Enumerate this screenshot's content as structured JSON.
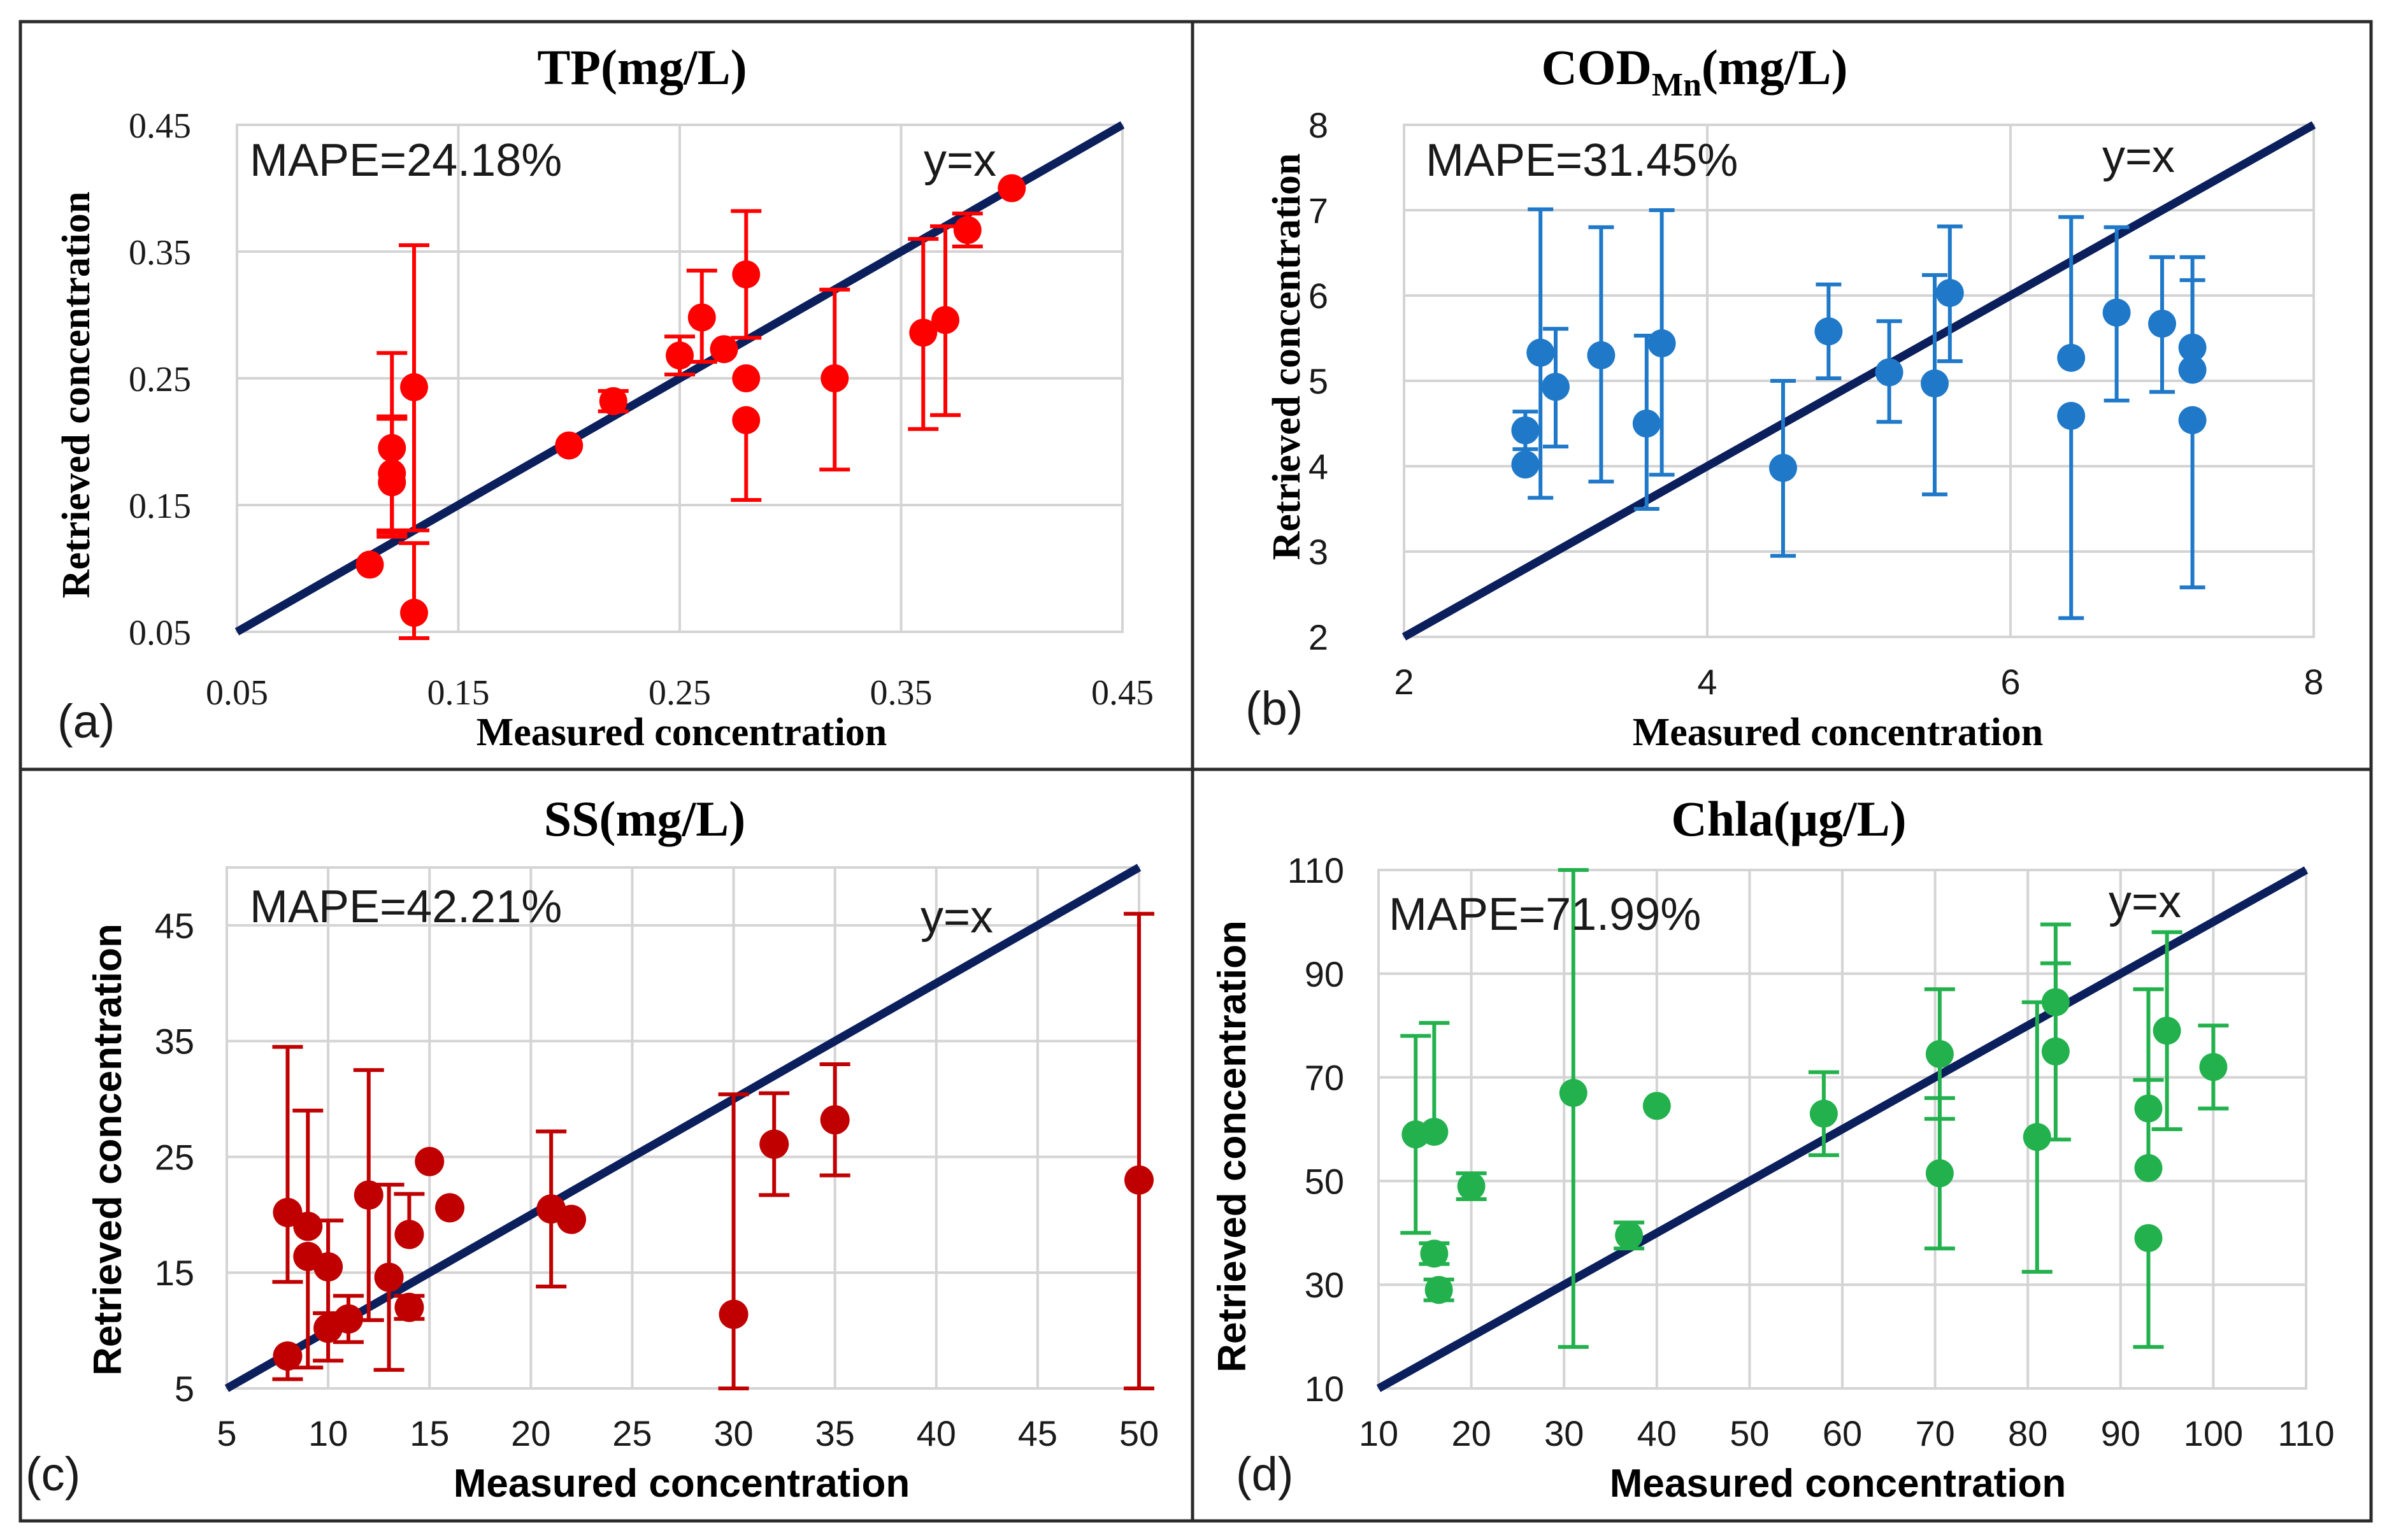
{
  "chart_data": [
    {
      "panel_label": "(a)",
      "type": "scatter",
      "title": "TP(mg/L)",
      "xlabel": "Measured concentration",
      "ylabel": "Retrieved concentration",
      "xlim": [
        0.05,
        0.45
      ],
      "ylim": [
        0.05,
        0.45
      ],
      "xticks": [
        "0.05",
        "0.15",
        "0.25",
        "0.35",
        "0.45"
      ],
      "yticks": [
        "0.05",
        "0.15",
        "0.25",
        "0.35",
        "0.45"
      ],
      "metric": "MAPE=24.18%",
      "ref_line_label": "y=x",
      "color": "#ff0000",
      "points": [
        {
          "x": 0.11,
          "y": 0.103,
          "err_low": 0.0,
          "err_high": 0.0
        },
        {
          "x": 0.12,
          "y": 0.195,
          "err_low": 0.07,
          "err_high": 0.075
        },
        {
          "x": 0.12,
          "y": 0.175,
          "err_low": 0.045,
          "err_high": 0.045
        },
        {
          "x": 0.12,
          "y": 0.168,
          "err_low": 0.04,
          "err_high": 0.05
        },
        {
          "x": 0.13,
          "y": 0.243,
          "err_low": 0.113,
          "err_high": 0.112
        },
        {
          "x": 0.13,
          "y": 0.065,
          "err_low": 0.02,
          "err_high": 0.055
        },
        {
          "x": 0.2,
          "y": 0.197,
          "err_low": 0.0,
          "err_high": 0.0
        },
        {
          "x": 0.22,
          "y": 0.232,
          "err_low": 0.008,
          "err_high": 0.008
        },
        {
          "x": 0.25,
          "y": 0.268,
          "err_low": 0.015,
          "err_high": 0.015
        },
        {
          "x": 0.26,
          "y": 0.298,
          "err_low": 0.035,
          "err_high": 0.037
        },
        {
          "x": 0.27,
          "y": 0.273,
          "err_low": 0.0,
          "err_high": 0.0
        },
        {
          "x": 0.28,
          "y": 0.332,
          "err_low": 0.05,
          "err_high": 0.05
        },
        {
          "x": 0.28,
          "y": 0.25,
          "err_low": 0.0,
          "err_high": 0.0
        },
        {
          "x": 0.28,
          "y": 0.217,
          "err_low": 0.063,
          "err_high": 0.0
        },
        {
          "x": 0.32,
          "y": 0.25,
          "err_low": 0.072,
          "err_high": 0.07
        },
        {
          "x": 0.36,
          "y": 0.286,
          "err_low": 0.076,
          "err_high": 0.074
        },
        {
          "x": 0.37,
          "y": 0.296,
          "err_low": 0.075,
          "err_high": 0.074
        },
        {
          "x": 0.38,
          "y": 0.367,
          "err_low": 0.013,
          "err_high": 0.013
        },
        {
          "x": 0.4,
          "y": 0.4,
          "err_low": 0.0,
          "err_high": 0.0
        }
      ]
    },
    {
      "panel_label": "(b)",
      "type": "scatter",
      "title": "COD",
      "title_subscript": "Mn",
      "title_suffix": "(mg/L)",
      "xlabel": "Measured concentration",
      "ylabel": "Retrieved concentration",
      "xlim": [
        2,
        8
      ],
      "ylim": [
        2,
        8
      ],
      "xticks": [
        "2",
        "4",
        "6",
        "8"
      ],
      "yticks": [
        "2",
        "3",
        "4",
        "5",
        "6",
        "7",
        "8"
      ],
      "metric": "MAPE=31.45%",
      "ref_line_label": "y=x",
      "color": "#1f78c8",
      "points": [
        {
          "x": 2.8,
          "y": 4.42,
          "err_low": 0.22,
          "err_high": 0.22
        },
        {
          "x": 2.8,
          "y": 4.02,
          "err_low": 0.0,
          "err_high": 0.0
        },
        {
          "x": 2.9,
          "y": 5.33,
          "err_low": 1.7,
          "err_high": 1.68
        },
        {
          "x": 3.0,
          "y": 4.93,
          "err_low": 0.7,
          "err_high": 0.68
        },
        {
          "x": 3.3,
          "y": 5.3,
          "err_low": 1.48,
          "err_high": 1.5
        },
        {
          "x": 3.6,
          "y": 4.5,
          "err_low": 1.0,
          "err_high": 1.03
        },
        {
          "x": 3.7,
          "y": 5.44,
          "err_low": 1.54,
          "err_high": 1.56
        },
        {
          "x": 4.5,
          "y": 3.98,
          "err_low": 1.03,
          "err_high": 1.02
        },
        {
          "x": 4.8,
          "y": 5.58,
          "err_low": 0.55,
          "err_high": 0.55
        },
        {
          "x": 5.2,
          "y": 5.1,
          "err_low": 0.58,
          "err_high": 0.6
        },
        {
          "x": 5.5,
          "y": 4.97,
          "err_low": 1.3,
          "err_high": 1.27
        },
        {
          "x": 5.6,
          "y": 6.03,
          "err_low": 0.8,
          "err_high": 0.78
        },
        {
          "x": 6.4,
          "y": 5.27,
          "err_low": 0.0,
          "err_high": 1.65
        },
        {
          "x": 6.4,
          "y": 4.59,
          "err_low": 2.37,
          "err_high": 0.0
        },
        {
          "x": 6.7,
          "y": 5.8,
          "err_low": 1.03,
          "err_high": 1.0
        },
        {
          "x": 7.0,
          "y": 5.67,
          "err_low": 0.8,
          "err_high": 0.78
        },
        {
          "x": 7.2,
          "y": 5.39,
          "err_low": 0.0,
          "err_high": 1.06
        },
        {
          "x": 7.2,
          "y": 5.13,
          "err_low": 0.0,
          "err_high": 1.05
        },
        {
          "x": 7.2,
          "y": 4.54,
          "err_low": 1.96,
          "err_high": 0.0
        }
      ]
    },
    {
      "panel_label": "(c)",
      "type": "scatter",
      "title": "SS(mg/L)",
      "xlabel": "Measured concentration",
      "ylabel": "Retrieved concentration",
      "xlim": [
        5,
        50
      ],
      "ylim": [
        5,
        50
      ],
      "xticks": [
        "5",
        "10",
        "15",
        "20",
        "25",
        "30",
        "35",
        "40",
        "45",
        "50"
      ],
      "yticks": [
        "5",
        "15",
        "25",
        "35",
        "45"
      ],
      "metric": "MAPE=42.21%",
      "ref_line_label": "y=x",
      "color": "#c00000",
      "points": [
        {
          "x": 8,
          "y": 20.2,
          "err_low": 6.0,
          "err_high": 14.3
        },
        {
          "x": 8,
          "y": 7.8,
          "err_low": 2.0,
          "err_high": 0.0
        },
        {
          "x": 9,
          "y": 19.0,
          "err_low": 0.0,
          "err_high": 10.0
        },
        {
          "x": 9,
          "y": 16.4,
          "err_low": 9.6,
          "err_high": 0.0
        },
        {
          "x": 10,
          "y": 15.5,
          "err_low": 4.0,
          "err_high": 4.0
        },
        {
          "x": 10,
          "y": 10.2,
          "err_low": 2.8,
          "err_high": 0.0
        },
        {
          "x": 11,
          "y": 11.0,
          "err_low": 2.0,
          "err_high": 2.0
        },
        {
          "x": 12,
          "y": 21.7,
          "err_low": 10.8,
          "err_high": 10.8
        },
        {
          "x": 13,
          "y": 14.6,
          "err_low": 8.0,
          "err_high": 8.0
        },
        {
          "x": 14,
          "y": 18.3,
          "err_low": 0.0,
          "err_high": 3.5
        },
        {
          "x": 14,
          "y": 12.0,
          "err_low": 1.0,
          "err_high": 1.0
        },
        {
          "x": 15,
          "y": 24.6,
          "err_low": 0.0,
          "err_high": 0.0
        },
        {
          "x": 16,
          "y": 20.6,
          "err_low": 0.0,
          "err_high": 0.0
        },
        {
          "x": 21,
          "y": 20.5,
          "err_low": 6.7,
          "err_high": 6.7
        },
        {
          "x": 22,
          "y": 19.6,
          "err_low": 0.0,
          "err_high": 0.0
        },
        {
          "x": 30,
          "y": 11.4,
          "err_low": 6.4,
          "err_high": 19.0
        },
        {
          "x": 32,
          "y": 26.1,
          "err_low": 4.4,
          "err_high": 4.4
        },
        {
          "x": 35,
          "y": 28.2,
          "err_low": 4.8,
          "err_high": 4.8
        },
        {
          "x": 50,
          "y": 23.0,
          "err_low": 18.0,
          "err_high": 23.0
        }
      ]
    },
    {
      "panel_label": "(d)",
      "type": "scatter",
      "title": "Chla(μg/L)",
      "xlabel": "Measured concentration",
      "ylabel": "Retrieved concentration",
      "xlim": [
        10,
        110
      ],
      "ylim": [
        10,
        110
      ],
      "xticks": [
        "10",
        "20",
        "30",
        "40",
        "50",
        "60",
        "70",
        "80",
        "90",
        "100",
        "110"
      ],
      "yticks": [
        "10",
        "30",
        "50",
        "70",
        "90",
        "110"
      ],
      "metric": "MAPE=71.99%",
      "ref_line_label": "y=x",
      "color": "#22b14c",
      "points": [
        {
          "x": 14,
          "y": 59.0,
          "err_low": 19.0,
          "err_high": 19.0
        },
        {
          "x": 16,
          "y": 59.5,
          "err_low": 0.0,
          "err_high": 21.0
        },
        {
          "x": 16,
          "y": 36.0,
          "err_low": 2.0,
          "err_high": 2.0
        },
        {
          "x": 16.5,
          "y": 29.0,
          "err_low": 2.0,
          "err_high": 2.0
        },
        {
          "x": 20,
          "y": 49.0,
          "err_low": 2.5,
          "err_high": 2.5
        },
        {
          "x": 31,
          "y": 67.0,
          "err_low": 49.0,
          "err_high": 43.0
        },
        {
          "x": 37,
          "y": 39.5,
          "err_low": 2.5,
          "err_high": 2.5
        },
        {
          "x": 40,
          "y": 64.5,
          "err_low": 0.0,
          "err_high": 0.0
        },
        {
          "x": 58,
          "y": 63.0,
          "err_low": 8.0,
          "err_high": 8.0
        },
        {
          "x": 70.5,
          "y": 74.5,
          "err_low": 12.5,
          "err_high": 12.5
        },
        {
          "x": 70.5,
          "y": 51.5,
          "err_low": 14.5,
          "err_high": 14.5
        },
        {
          "x": 81,
          "y": 58.5,
          "err_low": 26.0,
          "err_high": 26.0
        },
        {
          "x": 83,
          "y": 84.5,
          "err_low": 0.0,
          "err_high": 15.0
        },
        {
          "x": 83,
          "y": 75.0,
          "err_low": 17.0,
          "err_high": 17.0
        },
        {
          "x": 93,
          "y": 64.0,
          "err_low": 0.0,
          "err_high": 23.0
        },
        {
          "x": 93,
          "y": 52.5,
          "err_low": 0.0,
          "err_high": 17.0
        },
        {
          "x": 93,
          "y": 39.0,
          "err_low": 21.0,
          "err_high": 0.0
        },
        {
          "x": 95,
          "y": 79.0,
          "err_low": 19.0,
          "err_high": 19.0
        },
        {
          "x": 100,
          "y": 72.0,
          "err_low": 8.0,
          "err_high": 8.0
        }
      ]
    }
  ]
}
